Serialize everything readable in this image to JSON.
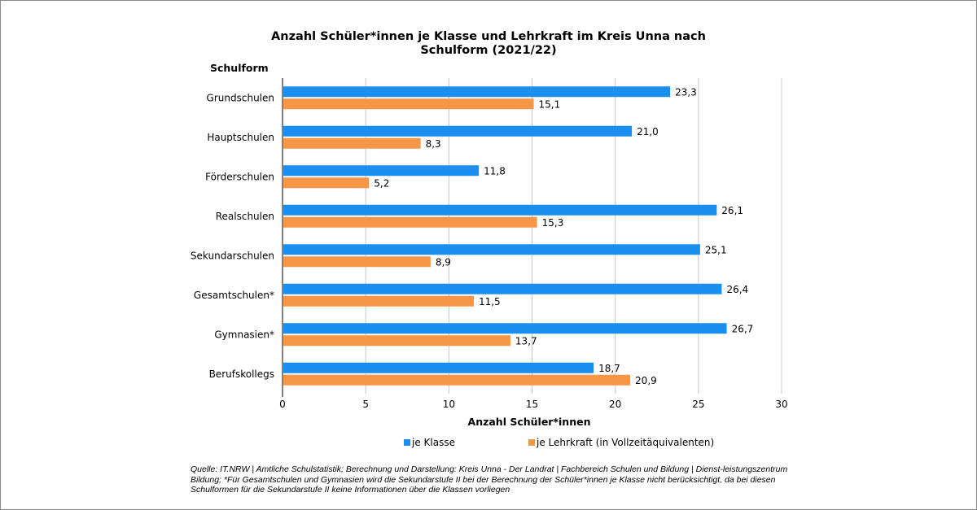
{
  "chart_data": {
    "type": "bar",
    "orientation": "horizontal",
    "title_lines": [
      "Anzahl Schüler*innen je Klasse und Lehrkraft im Kreis Unna nach",
      "Schulform (2021/22)"
    ],
    "ylabel": "Schulform",
    "xlabel": "Anzahl Schüler*innen",
    "xlim": [
      0,
      30
    ],
    "xticks": [
      0,
      5,
      10,
      15,
      20,
      25,
      30
    ],
    "grid": true,
    "legend_position": "bottom",
    "categories": [
      "Grundschulen",
      "Hauptschulen",
      "Förderschulen",
      "Realschulen",
      "Sekundarschulen",
      "Gesamtschulen*",
      "Gymnasien*",
      "Berufskollegs"
    ],
    "series": [
      {
        "name": "je Klasse",
        "color": "#1a8ff0",
        "values": [
          23.3,
          21.0,
          11.8,
          26.1,
          25.1,
          26.4,
          26.7,
          18.7
        ],
        "labels": [
          "23,3",
          "21,0",
          "11,8",
          "26,1",
          "25,1",
          "26,4",
          "26,7",
          "18,7"
        ]
      },
      {
        "name": "je Lehrkraft (in Vollzeitäquivalenten)",
        "color": "#f79646",
        "values": [
          15.1,
          8.3,
          5.2,
          15.3,
          8.9,
          11.5,
          13.7,
          20.9
        ],
        "labels": [
          "15,1",
          "8,3",
          "5,2",
          "15,3",
          "8,9",
          "11,5",
          "13,7",
          "20,9"
        ]
      }
    ],
    "source_note": "Quelle: IT.NRW | Amtliche Schulstatistik; Berechnung und Darstellung: Kreis Unna - Der Landrat | Fachbereich Schulen und Bildung | Dienst-leistungszentrum Bildung; *Für Gesamtschulen und Gymnasien wird die Sekundarstufe II bei der Berechnung der Schüler*innen je Klasse nicht berücksichtigt, da bei diesen Schulformen für die Sekundarstufe II keine Informationen über die Klassen vorliegen"
  }
}
